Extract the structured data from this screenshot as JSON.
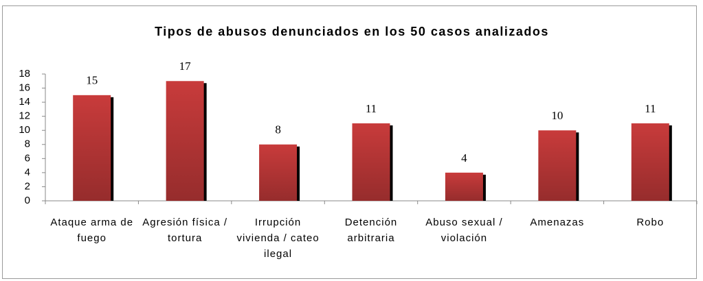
{
  "chart_data": {
    "type": "bar",
    "title": "Tipos de abusos denunciados en los 50 casos analizados",
    "categories": [
      "Ataque arma de fuego",
      "Agresión física / tortura",
      "Irrupción vivienda / cateo ilegal",
      "Detención arbitraria",
      "Abuso sexual / violación",
      "Amenazas",
      "Robo"
    ],
    "values": [
      15,
      17,
      8,
      11,
      4,
      10,
      11
    ],
    "color": "#c83b3b",
    "ylim": [
      0,
      18
    ],
    "yticks": [
      0,
      2,
      4,
      6,
      8,
      10,
      12,
      14,
      16,
      18
    ],
    "grid": false
  }
}
